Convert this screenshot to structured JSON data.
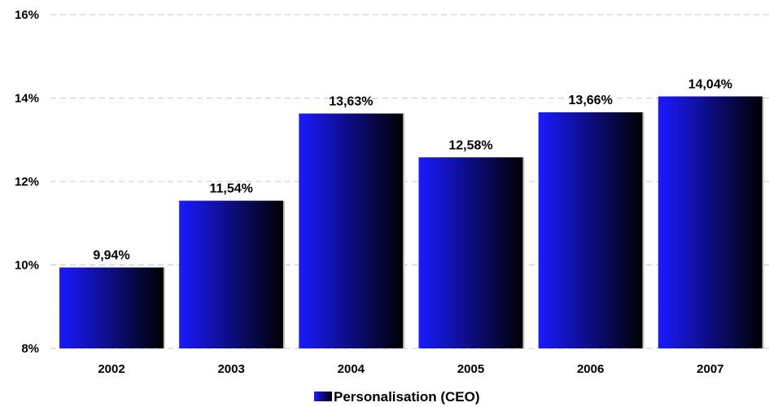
{
  "chart_data": {
    "type": "bar",
    "categories": [
      "2002",
      "2003",
      "2004",
      "2005",
      "2006",
      "2007"
    ],
    "series": [
      {
        "name": "Personalisation (CEO)",
        "values": [
          9.94,
          11.54,
          13.63,
          12.58,
          13.66,
          14.04
        ],
        "value_labels": [
          "9,94%",
          "11,54%",
          "13,63%",
          "12,58%",
          "13,66%",
          "14,04%"
        ]
      }
    ],
    "yticks": [
      8,
      10,
      12,
      14,
      16
    ],
    "ytick_labels": [
      "8%",
      "10%",
      "12%",
      "14%",
      "16%"
    ],
    "ylim": [
      8,
      16
    ],
    "grid": true,
    "legend_position": "bottom-center",
    "colors": {
      "bar_start": "#1a1aff",
      "bar_end": "#000000",
      "grid": "#c8c8c8"
    }
  }
}
